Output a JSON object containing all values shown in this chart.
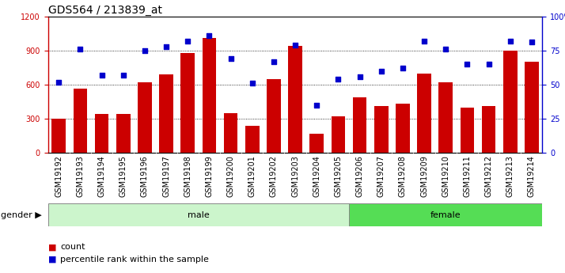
{
  "title": "GDS564 / 213839_at",
  "samples": [
    "GSM19192",
    "GSM19193",
    "GSM19194",
    "GSM19195",
    "GSM19196",
    "GSM19197",
    "GSM19198",
    "GSM19199",
    "GSM19200",
    "GSM19201",
    "GSM19202",
    "GSM19203",
    "GSM19204",
    "GSM19205",
    "GSM19206",
    "GSM19207",
    "GSM19208",
    "GSM19209",
    "GSM19210",
    "GSM19211",
    "GSM19212",
    "GSM19213",
    "GSM19214"
  ],
  "counts": [
    300,
    565,
    345,
    340,
    620,
    690,
    880,
    1010,
    350,
    240,
    650,
    940,
    170,
    320,
    490,
    415,
    430,
    700,
    620,
    400,
    415,
    900,
    800
  ],
  "percentiles": [
    52,
    76,
    57,
    57,
    75,
    78,
    82,
    86,
    69,
    51,
    67,
    79,
    35,
    54,
    56,
    60,
    62,
    82,
    76,
    65,
    65,
    82,
    81
  ],
  "gender": [
    "male",
    "male",
    "male",
    "male",
    "male",
    "male",
    "male",
    "male",
    "male",
    "male",
    "male",
    "male",
    "male",
    "male",
    "female",
    "female",
    "female",
    "female",
    "female",
    "female",
    "female",
    "female",
    "female"
  ],
  "bar_color": "#cc0000",
  "dot_color": "#0000cc",
  "ylim_left": [
    0,
    1200
  ],
  "ylim_right": [
    0,
    100
  ],
  "yticks_left": [
    0,
    300,
    600,
    900,
    1200
  ],
  "yticks_right": [
    0,
    25,
    50,
    75,
    100
  ],
  "yticklabels_right": [
    "0",
    "25",
    "50",
    "75",
    "100%"
  ],
  "male_color": "#ccf5cc",
  "female_color": "#55dd55",
  "grid_color": "#000000",
  "background_color": "#ffffff",
  "xticklabel_bg": "#cccccc",
  "title_fontsize": 10,
  "tick_fontsize": 7,
  "label_fontsize": 8,
  "num_male": 14,
  "num_female": 9
}
